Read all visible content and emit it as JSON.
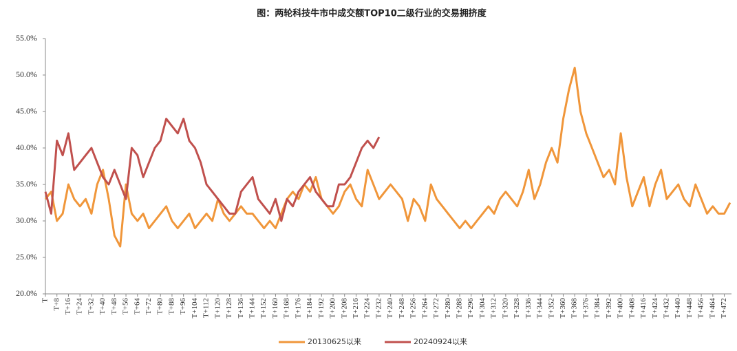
{
  "chart_data": {
    "type": "line",
    "title": "图：两轮科技牛市中成交额TOP10二级行业的交易拥挤度",
    "x": [
      0,
      4,
      8,
      12,
      16,
      20,
      24,
      28,
      32,
      36,
      40,
      44,
      48,
      52,
      56,
      60,
      64,
      68,
      72,
      76,
      80,
      84,
      88,
      92,
      96,
      100,
      104,
      108,
      112,
      116,
      120,
      124,
      128,
      132,
      136,
      140,
      144,
      148,
      152,
      156,
      160,
      164,
      168,
      172,
      176,
      180,
      184,
      188,
      192,
      196,
      200,
      204,
      208,
      212,
      216,
      220,
      224,
      228,
      232,
      236,
      240,
      244,
      248,
      252,
      256,
      260,
      264,
      268,
      272,
      276,
      280,
      284,
      288,
      292,
      296,
      300,
      304,
      308,
      312,
      316,
      320,
      324,
      328,
      332,
      336,
      340,
      344,
      348,
      352,
      356,
      360,
      364,
      368,
      372,
      376,
      380,
      384,
      388,
      392,
      396,
      400,
      404,
      408,
      412,
      416,
      420,
      424,
      428,
      432,
      436,
      440,
      444,
      448,
      452,
      456,
      460,
      464,
      468,
      472,
      476
    ],
    "series": [
      {
        "name": "20130625以来",
        "color": "#f0963a",
        "values": [
          33,
          34,
          30,
          31,
          35,
          33,
          32,
          33,
          31,
          35,
          37,
          33,
          28,
          26.5,
          35,
          31,
          30,
          31,
          29,
          30,
          31,
          32,
          30,
          29,
          30,
          31,
          29,
          30,
          31,
          30,
          33,
          31,
          30,
          31,
          32,
          31,
          31,
          30,
          29,
          30,
          29,
          31,
          33,
          34,
          33,
          35,
          34,
          36,
          33,
          32,
          31,
          32,
          34,
          35,
          33,
          32,
          37,
          35,
          33,
          34,
          35,
          34,
          33,
          30,
          33,
          32,
          30,
          35,
          33,
          32,
          31,
          30,
          29,
          30,
          29,
          30,
          31,
          32,
          31,
          33,
          34,
          33,
          32,
          34,
          37,
          33,
          35,
          38,
          40,
          38,
          44,
          48,
          51,
          45,
          42,
          40,
          38,
          36,
          37,
          35,
          42,
          36,
          32,
          34,
          36,
          32,
          35,
          37,
          33,
          34,
          35,
          33,
          32,
          35,
          33,
          31,
          32,
          31,
          31,
          32.5
        ]
      },
      {
        "name": "20240924以来",
        "color": "#c0504d",
        "values": [
          34,
          31,
          41,
          39,
          42,
          37,
          38,
          39,
          40,
          38,
          36,
          35,
          37,
          35,
          33,
          40,
          39,
          36,
          38,
          40,
          41,
          44,
          43,
          42,
          44,
          41,
          40,
          38,
          35,
          34,
          33,
          32,
          31,
          31,
          34,
          35,
          36,
          33,
          32,
          31,
          33,
          30,
          33,
          32,
          34,
          35,
          36,
          34,
          33,
          32,
          32,
          35,
          35,
          36,
          38,
          40,
          41,
          40,
          41.5,
          null,
          null,
          null,
          null,
          null,
          null,
          null,
          null,
          null,
          null,
          null,
          null,
          null,
          null,
          null,
          null,
          null,
          null,
          null,
          null,
          null,
          null,
          null,
          null,
          null,
          null,
          null,
          null,
          null,
          null,
          null,
          null,
          null,
          null,
          null,
          null,
          null,
          null,
          null,
          null,
          null,
          null,
          null,
          null,
          null,
          null,
          null,
          null,
          null,
          null,
          null,
          null,
          null,
          null,
          null,
          null,
          null,
          null,
          null,
          null,
          null
        ]
      }
    ],
    "xlim": [
      0,
      477
    ],
    "xticks": [
      {
        "value": 0,
        "label": "T"
      },
      {
        "value": 8,
        "label": "T+8"
      },
      {
        "value": 16,
        "label": "T+16"
      },
      {
        "value": 24,
        "label": "T+24"
      },
      {
        "value": 32,
        "label": "T+32"
      },
      {
        "value": 40,
        "label": "T+40"
      },
      {
        "value": 48,
        "label": "T+48"
      },
      {
        "value": 56,
        "label": "T+56"
      },
      {
        "value": 64,
        "label": "T+64"
      },
      {
        "value": 72,
        "label": "T+72"
      },
      {
        "value": 80,
        "label": "T+80"
      },
      {
        "value": 88,
        "label": "T+88"
      },
      {
        "value": 96,
        "label": "T+96"
      },
      {
        "value": 104,
        "label": "T+104"
      },
      {
        "value": 112,
        "label": "T+112"
      },
      {
        "value": 120,
        "label": "T+120"
      },
      {
        "value": 128,
        "label": "T+128"
      },
      {
        "value": 136,
        "label": "T+136"
      },
      {
        "value": 144,
        "label": "T+144"
      },
      {
        "value": 152,
        "label": "T+152"
      },
      {
        "value": 160,
        "label": "T+160"
      },
      {
        "value": 168,
        "label": "T+168"
      },
      {
        "value": 176,
        "label": "T+176"
      },
      {
        "value": 184,
        "label": "T+184"
      },
      {
        "value": 192,
        "label": "T+192"
      },
      {
        "value": 200,
        "label": "T+200"
      },
      {
        "value": 208,
        "label": "T+208"
      },
      {
        "value": 216,
        "label": "T+216"
      },
      {
        "value": 224,
        "label": "T+224"
      },
      {
        "value": 232,
        "label": "T+232"
      },
      {
        "value": 240,
        "label": "T+240"
      },
      {
        "value": 248,
        "label": "T+248"
      },
      {
        "value": 256,
        "label": "T+256"
      },
      {
        "value": 264,
        "label": "T+264"
      },
      {
        "value": 272,
        "label": "T+272"
      },
      {
        "value": 280,
        "label": "T+280"
      },
      {
        "value": 288,
        "label": "T+288"
      },
      {
        "value": 296,
        "label": "T+296"
      },
      {
        "value": 304,
        "label": "T+304"
      },
      {
        "value": 312,
        "label": "T+312"
      },
      {
        "value": 320,
        "label": "T+320"
      },
      {
        "value": 328,
        "label": "T+328"
      },
      {
        "value": 336,
        "label": "T+336"
      },
      {
        "value": 344,
        "label": "T+344"
      },
      {
        "value": 352,
        "label": "T+352"
      },
      {
        "value": 360,
        "label": "T+360"
      },
      {
        "value": 368,
        "label": "T+368"
      },
      {
        "value": 376,
        "label": "T+376"
      },
      {
        "value": 384,
        "label": "T+384"
      },
      {
        "value": 392,
        "label": "T+392"
      },
      {
        "value": 400,
        "label": "T+400"
      },
      {
        "value": 408,
        "label": "T+408"
      },
      {
        "value": 416,
        "label": "T+416"
      },
      {
        "value": 424,
        "label": "T+424"
      },
      {
        "value": 432,
        "label": "T+432"
      },
      {
        "value": 440,
        "label": "T+440"
      },
      {
        "value": 448,
        "label": "T+448"
      },
      {
        "value": 456,
        "label": "T+456"
      },
      {
        "value": 464,
        "label": "T+464"
      },
      {
        "value": 472,
        "label": "T+472"
      }
    ],
    "ylim": [
      20,
      55
    ],
    "yticks": [
      {
        "value": 20,
        "label": "20.0%"
      },
      {
        "value": 25,
        "label": "25.0%"
      },
      {
        "value": 30,
        "label": "30.0%"
      },
      {
        "value": 35,
        "label": "35.0%"
      },
      {
        "value": 40,
        "label": "40.0%"
      },
      {
        "value": 45,
        "label": "45.0%"
      },
      {
        "value": 50,
        "label": "50.0%"
      },
      {
        "value": 55,
        "label": "55.0%"
      }
    ],
    "grid": false,
    "legend": "bottom"
  }
}
